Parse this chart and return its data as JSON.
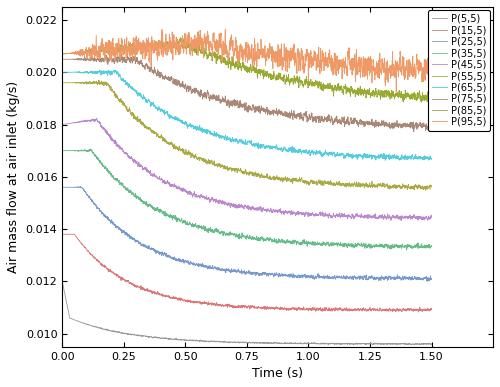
{
  "title": "",
  "xlabel": "Time (s)",
  "ylabel": "Air mass flow at air inlet (kg/s)",
  "xlim": [
    0,
    1.75
  ],
  "ylim": [
    0.0095,
    0.0225
  ],
  "yticks": [
    0.01,
    0.012,
    0.014,
    0.016,
    0.018,
    0.02,
    0.022
  ],
  "xticks": [
    0.0,
    0.25,
    0.5,
    0.75,
    1.0,
    1.25,
    1.5
  ],
  "series": [
    {
      "label": "P(5,5)",
      "color": "#999999",
      "t0_val": 0.012,
      "peak_val": 0.0106,
      "peak_t": 0.03,
      "steady": 0.0096,
      "decay_tau": 0.25,
      "noise_amp": 2.5e-05,
      "noise_freq": 80
    },
    {
      "label": "P(15,5)",
      "color": "#DD7777",
      "t0_val": 0.0138,
      "peak_val": 0.0138,
      "peak_t": 0.05,
      "steady": 0.0109,
      "decay_tau": 0.22,
      "noise_amp": 6e-05,
      "noise_freq": 100
    },
    {
      "label": "P(25,5)",
      "color": "#7799CC",
      "t0_val": 0.0156,
      "peak_val": 0.0156,
      "peak_t": 0.08,
      "steady": 0.0121,
      "decay_tau": 0.25,
      "noise_amp": 8e-05,
      "noise_freq": 100
    },
    {
      "label": "P(35,5)",
      "color": "#66BB88",
      "t0_val": 0.017,
      "peak_val": 0.017,
      "peak_t": 0.12,
      "steady": 0.0133,
      "decay_tau": 0.28,
      "noise_amp": 9e-05,
      "noise_freq": 100
    },
    {
      "label": "P(45,5)",
      "color": "#BB88CC",
      "t0_val": 0.018,
      "peak_val": 0.0182,
      "peak_t": 0.14,
      "steady": 0.0144,
      "decay_tau": 0.28,
      "noise_amp": 9e-05,
      "noise_freq": 100
    },
    {
      "label": "P(55,5)",
      "color": "#AAAA44",
      "t0_val": 0.0196,
      "peak_val": 0.0196,
      "peak_t": 0.18,
      "steady": 0.01555,
      "decay_tau": 0.3,
      "noise_amp": 0.0001,
      "noise_freq": 90
    },
    {
      "label": "P(65,5)",
      "color": "#55CCDD",
      "t0_val": 0.02,
      "peak_val": 0.02,
      "peak_t": 0.22,
      "steady": 0.01665,
      "decay_tau": 0.32,
      "noise_amp": 0.0001,
      "noise_freq": 90
    },
    {
      "label": "P(75,5)",
      "color": "#AA8877",
      "t0_val": 0.0205,
      "peak_val": 0.0205,
      "peak_t": 0.3,
      "steady": 0.0178,
      "decay_tau": 0.4,
      "noise_amp": 0.00015,
      "noise_freq": 80
    },
    {
      "label": "P(85,5)",
      "color": "#99AA33",
      "t0_val": 0.0207,
      "peak_val": 0.0211,
      "peak_t": 0.5,
      "steady": 0.0187,
      "decay_tau": 0.5,
      "noise_amp": 0.00018,
      "noise_freq": 70
    },
    {
      "label": "P(95,5)",
      "color": "#EE9966",
      "t0_val": 0.0207,
      "peak_val": 0.02115,
      "peak_t": 0.6,
      "steady": 0.0197,
      "decay_tau": 0.6,
      "noise_amp": 0.0005,
      "noise_freq": 60
    }
  ],
  "figsize": [
    5.0,
    3.87
  ],
  "dpi": 100
}
